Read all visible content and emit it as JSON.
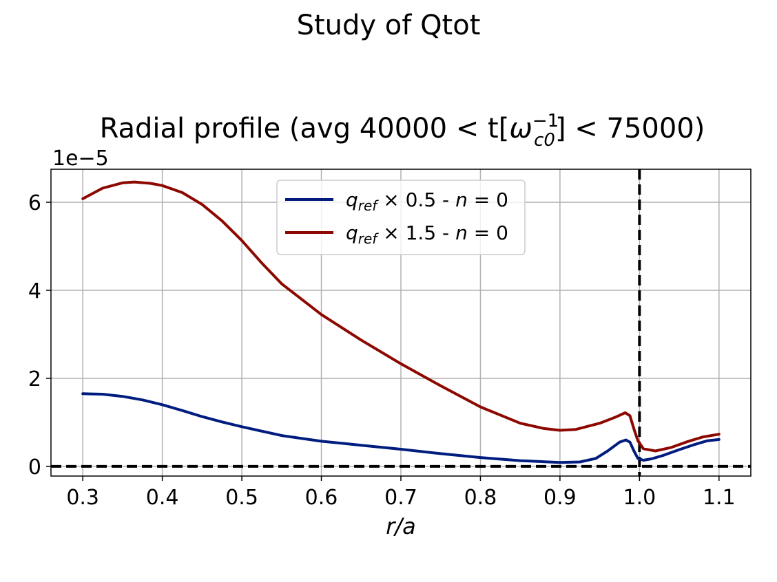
{
  "suptitle": "Study of Qtot",
  "chart_data": {
    "type": "line",
    "title_prefix": "Radial profile (avg 40000 < t[",
    "title_symbol": "ω",
    "title_subscript": "c0",
    "title_superscript": "−1",
    "title_suffix": "] < 75000)",
    "offset_text": "1e−5",
    "xlabel": "r/a",
    "ylabel": "",
    "xlim": [
      0.26,
      1.14
    ],
    "ylim": [
      -0.22,
      6.75
    ],
    "y_scale_factor": 1e-05,
    "xticks": [
      0.3,
      0.4,
      0.5,
      0.6,
      0.7,
      0.8,
      0.9,
      1.0,
      1.1
    ],
    "xtick_labels": [
      "0.3",
      "0.4",
      "0.5",
      "0.6",
      "0.7",
      "0.8",
      "0.9",
      "1.0",
      "1.1"
    ],
    "yticks": [
      0,
      2,
      4,
      6
    ],
    "ytick_labels": [
      "0",
      "2",
      "4",
      "6"
    ],
    "grid": true,
    "legend_position": "top-center",
    "reference_lines": {
      "vertical_x": 1.0,
      "horizontal_y": 0
    },
    "series": [
      {
        "name": "q_ref × 0.5 - n = 0",
        "legend_base": "q",
        "legend_sub": "ref",
        "legend_rest": " × 0.5 - ",
        "legend_n": "n",
        "legend_eq": " = 0",
        "color": "#001c7f",
        "points": [
          [
            0.3,
            1.65
          ],
          [
            0.325,
            1.64
          ],
          [
            0.35,
            1.59
          ],
          [
            0.375,
            1.51
          ],
          [
            0.4,
            1.4
          ],
          [
            0.425,
            1.27
          ],
          [
            0.45,
            1.13
          ],
          [
            0.475,
            1.01
          ],
          [
            0.5,
            0.9
          ],
          [
            0.55,
            0.7
          ],
          [
            0.6,
            0.57
          ],
          [
            0.65,
            0.48
          ],
          [
            0.7,
            0.39
          ],
          [
            0.75,
            0.29
          ],
          [
            0.8,
            0.2
          ],
          [
            0.85,
            0.13
          ],
          [
            0.9,
            0.09
          ],
          [
            0.925,
            0.1
          ],
          [
            0.945,
            0.18
          ],
          [
            0.96,
            0.35
          ],
          [
            0.975,
            0.55
          ],
          [
            0.983,
            0.6
          ],
          [
            0.988,
            0.55
          ],
          [
            0.993,
            0.35
          ],
          [
            0.998,
            0.18
          ],
          [
            1.005,
            0.14
          ],
          [
            1.015,
            0.17
          ],
          [
            1.03,
            0.25
          ],
          [
            1.05,
            0.38
          ],
          [
            1.07,
            0.5
          ],
          [
            1.085,
            0.58
          ],
          [
            1.1,
            0.61
          ]
        ]
      },
      {
        "name": "q_ref × 1.5 - n = 0",
        "legend_base": "q",
        "legend_sub": "ref",
        "legend_rest": " × 1.5 - ",
        "legend_n": "n",
        "legend_eq": " = 0",
        "color": "#8c0800",
        "points": [
          [
            0.3,
            6.08
          ],
          [
            0.325,
            6.32
          ],
          [
            0.35,
            6.44
          ],
          [
            0.365,
            6.46
          ],
          [
            0.385,
            6.43
          ],
          [
            0.4,
            6.38
          ],
          [
            0.425,
            6.22
          ],
          [
            0.45,
            5.95
          ],
          [
            0.475,
            5.58
          ],
          [
            0.5,
            5.13
          ],
          [
            0.525,
            4.62
          ],
          [
            0.55,
            4.15
          ],
          [
            0.6,
            3.45
          ],
          [
            0.65,
            2.87
          ],
          [
            0.7,
            2.33
          ],
          [
            0.75,
            1.83
          ],
          [
            0.8,
            1.35
          ],
          [
            0.85,
            0.98
          ],
          [
            0.88,
            0.86
          ],
          [
            0.9,
            0.82
          ],
          [
            0.92,
            0.84
          ],
          [
            0.95,
            0.98
          ],
          [
            0.97,
            1.12
          ],
          [
            0.982,
            1.22
          ],
          [
            0.988,
            1.15
          ],
          [
            0.993,
            0.85
          ],
          [
            0.998,
            0.58
          ],
          [
            1.005,
            0.4
          ],
          [
            1.02,
            0.35
          ],
          [
            1.04,
            0.43
          ],
          [
            1.06,
            0.56
          ],
          [
            1.08,
            0.67
          ],
          [
            1.1,
            0.73
          ]
        ]
      }
    ]
  }
}
